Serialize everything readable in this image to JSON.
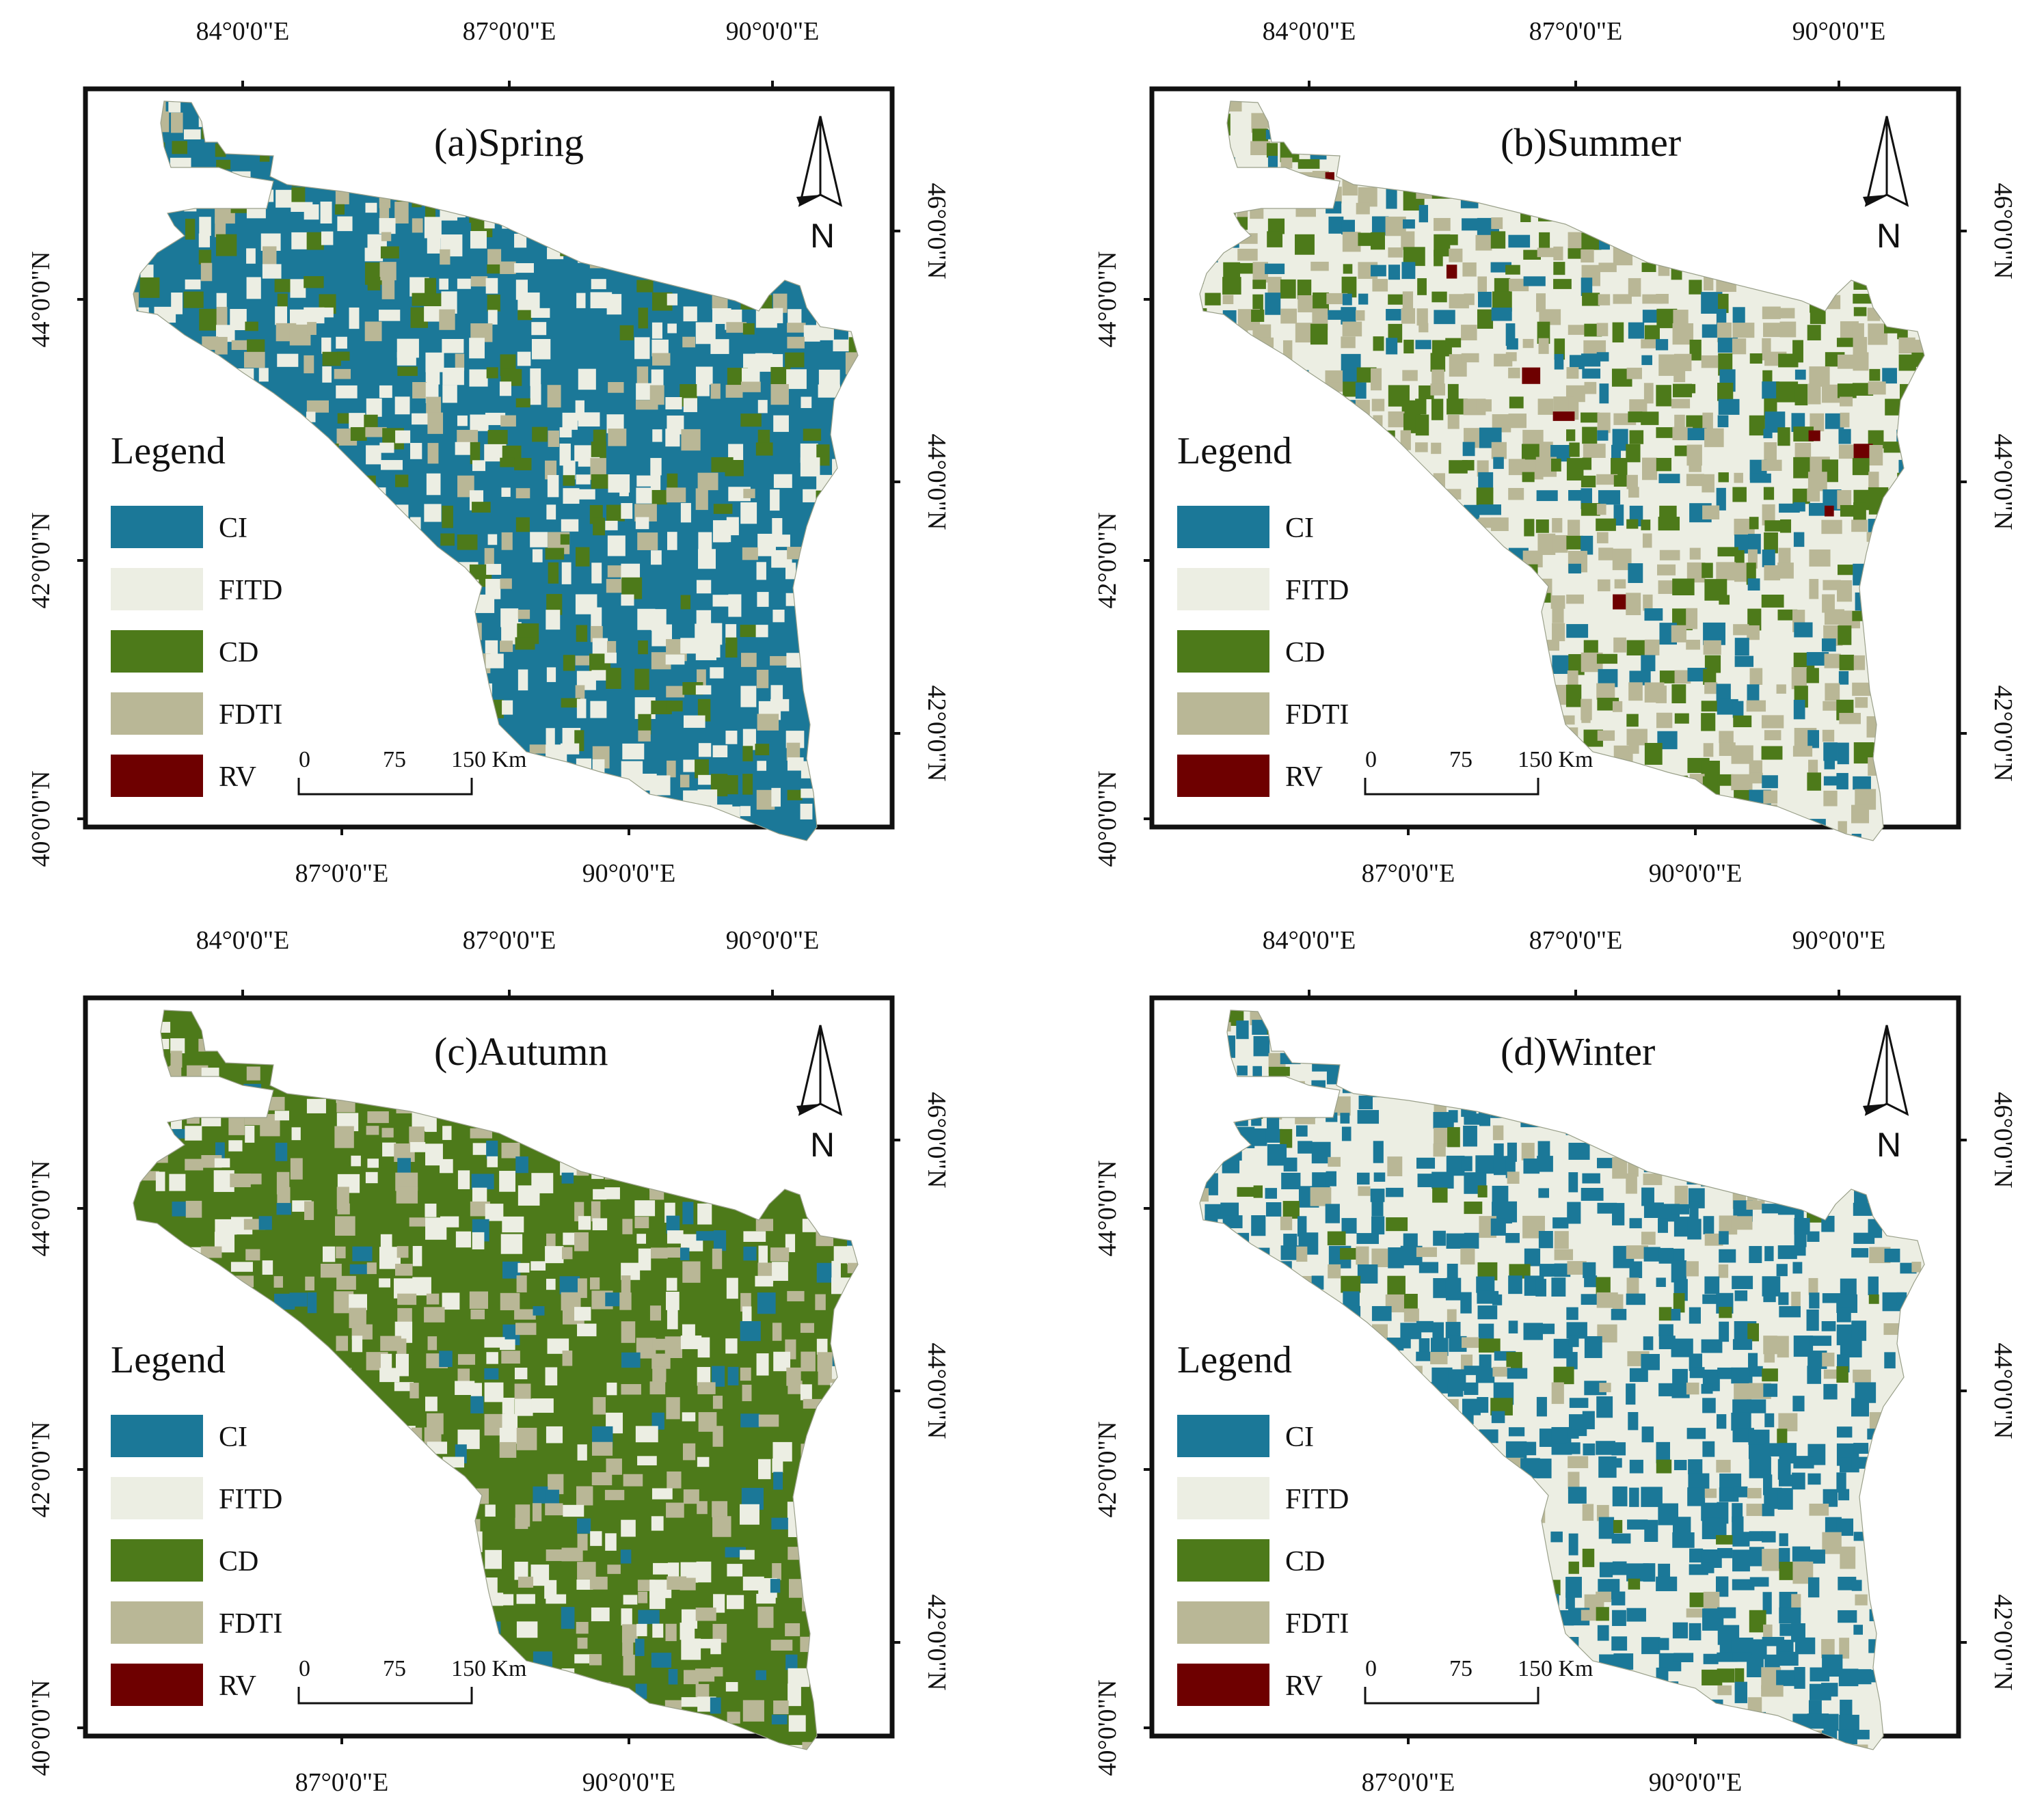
{
  "colors": {
    "CI": "#1b7898",
    "FITD": "#eceee3",
    "CD": "#4d7a1a",
    "FDTI": "#b9b796",
    "RV": "#6e0000",
    "frame": "#111111"
  },
  "legend": {
    "title": "Legend",
    "items": [
      {
        "key": "CI",
        "label": "CI"
      },
      {
        "key": "FITD",
        "label": "FITD"
      },
      {
        "key": "CD",
        "label": "CD"
      },
      {
        "key": "FDTI",
        "label": "FDTI"
      },
      {
        "key": "RV",
        "label": "RV"
      }
    ]
  },
  "scalebar": {
    "labels": [
      "0",
      "75",
      "150 Km"
    ]
  },
  "north_arrow": {
    "label": "N",
    "icon": "north-arrow-icon"
  },
  "axes": {
    "top_ticks": [
      "84°0'0\"E",
      "87°0'0\"E",
      "90°0'0\"E"
    ],
    "bottom_ticks": [
      "87°0'0\"E",
      "90°0'0\"E"
    ],
    "left_ticks": [
      "44°0'0\"N",
      "42°0'0\"N",
      "40°0'0\"N"
    ],
    "right_ticks": [
      "46°0'0\"N",
      "44°0'0\"N",
      "42°0'0\"N"
    ]
  },
  "panels": [
    {
      "id": "a",
      "title": "(a)Spring",
      "base": "CI",
      "mix": [
        [
          "CI",
          0.55
        ],
        [
          "FITD",
          0.25
        ],
        [
          "CD",
          0.12
        ],
        [
          "FDTI",
          0.08
        ]
      ]
    },
    {
      "id": "b",
      "title": "(b)Summer",
      "base": "FITD",
      "mix": [
        [
          "FITD",
          0.45
        ],
        [
          "FDTI",
          0.25
        ],
        [
          "CD",
          0.17
        ],
        [
          "CI",
          0.12
        ],
        [
          "RV",
          0.01
        ]
      ]
    },
    {
      "id": "c",
      "title": "(c)Autumn",
      "base": "CD",
      "mix": [
        [
          "CD",
          0.62
        ],
        [
          "FITD",
          0.18
        ],
        [
          "FDTI",
          0.16
        ],
        [
          "CI",
          0.04
        ]
      ]
    },
    {
      "id": "d",
      "title": "(d)Winter",
      "base": "FITD",
      "mix": [
        [
          "FITD",
          0.48
        ],
        [
          "CI",
          0.38
        ],
        [
          "FDTI",
          0.1
        ],
        [
          "CD",
          0.04
        ]
      ]
    }
  ]
}
